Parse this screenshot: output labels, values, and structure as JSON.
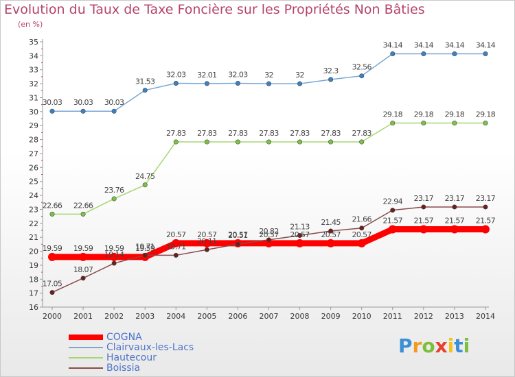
{
  "title": "Evolution du Taux de Taxe Foncière sur les Propriétés Non Bâties",
  "unit": "(en %)",
  "logo": {
    "letters": [
      "P",
      "r",
      "o",
      "x",
      "i",
      "t",
      "i"
    ],
    "colors": [
      "#3b8fd6",
      "#f29a1d",
      "#7cbf3a",
      "#e8402f",
      "#f2c41d",
      "#3b8fd6",
      "#7cbf3a"
    ]
  },
  "chart_data": {
    "type": "line",
    "x": [
      "2000",
      "2001",
      "2002",
      "2003",
      "2004",
      "2005",
      "2006",
      "2007",
      "2008",
      "2009",
      "2010",
      "2011",
      "2012",
      "2013",
      "2014"
    ],
    "ylim": [
      16,
      35
    ],
    "yticks": [
      "16",
      "17",
      "18",
      "19",
      "20",
      "21",
      "22",
      "23",
      "24",
      "25",
      "26",
      "27",
      "28",
      "29",
      "30",
      "31",
      "32",
      "33",
      "34",
      "35"
    ],
    "grid": false,
    "legend": "bottom-left",
    "series": [
      {
        "name": "COGNA",
        "color": "#ff0000",
        "point_color": "#ff0000",
        "values": [
          19.59,
          19.59,
          19.59,
          19.59,
          20.57,
          20.57,
          20.57,
          20.57,
          20.57,
          20.57,
          20.57,
          21.57,
          21.57,
          21.57,
          21.57
        ],
        "labels": [
          "19.59",
          "19.59",
          "19.59",
          "19.59",
          "20.57",
          "20.57",
          "20.57",
          "20.57",
          "20.57",
          "20.57",
          "20.57",
          "21.57",
          "21.57",
          "21.57",
          "21.57"
        ]
      },
      {
        "name": "Clairvaux-les-Lacs",
        "color": "#7aa6d6",
        "point_color": "#3b82c4",
        "values": [
          30.03,
          30.03,
          30.03,
          31.53,
          32.03,
          32.01,
          32.03,
          32,
          32,
          32.3,
          32.56,
          34.14,
          34.14,
          34.14,
          34.14
        ],
        "labels": [
          "30.03",
          "30.03",
          "30.03",
          "31.53",
          "32.03",
          "32.01",
          "32.03",
          "32",
          "32",
          "32.3",
          "32.56",
          "34.14",
          "34.14",
          "34.14",
          "34.14"
        ]
      },
      {
        "name": "Hautecour",
        "color": "#a6d672",
        "point_color": "#7cc443",
        "values": [
          22.66,
          22.66,
          23.76,
          24.75,
          27.83,
          27.83,
          27.83,
          27.83,
          27.83,
          27.83,
          27.83,
          29.18,
          29.18,
          29.18,
          29.18
        ],
        "labels": [
          "22.66",
          "22.66",
          "23.76",
          "24.75",
          "27.83",
          "27.83",
          "27.83",
          "27.83",
          "27.83",
          "27.83",
          "27.83",
          "29.18",
          "29.18",
          "29.18",
          "29.18"
        ]
      },
      {
        "name": "Boissia",
        "color": "#8a4a4a",
        "point_color": "#6b1f1f",
        "values": [
          17.05,
          18.07,
          19.14,
          19.71,
          19.71,
          20.11,
          20.51,
          20.82,
          21.13,
          21.45,
          21.66,
          22.94,
          23.17,
          23.17,
          23.17
        ],
        "labels": [
          "17.05",
          "18.07",
          "19.14",
          "19.71",
          "19.71",
          "20.11",
          "20.51",
          "20.82",
          "21.13",
          "21.45",
          "21.66",
          "22.94",
          "23.17",
          "23.17",
          "23.17"
        ]
      }
    ]
  }
}
